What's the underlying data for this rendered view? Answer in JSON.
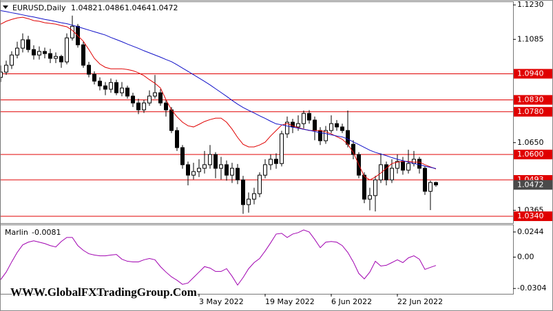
{
  "chart_data": [
    {
      "type": "candlestick",
      "title": "EURUSD,Daily",
      "categories": [
        null,
        null,
        null,
        null,
        null,
        null,
        null,
        null,
        null,
        null,
        null,
        null,
        null,
        null,
        null,
        null,
        null,
        null,
        null,
        null,
        null,
        null,
        null,
        null,
        null,
        null,
        null,
        null,
        null,
        null,
        null,
        null,
        null,
        null,
        null,
        null,
        "3 May 2022",
        null,
        null,
        null,
        null,
        null,
        null,
        null,
        null,
        null,
        null,
        null,
        "19 May 2022",
        null,
        null,
        null,
        null,
        null,
        null,
        null,
        null,
        null,
        null,
        null,
        "6 Jun 2022",
        null,
        null,
        null,
        null,
        null,
        null,
        null,
        null,
        null,
        null,
        null,
        "22 Jun 2022",
        null,
        null,
        null,
        null,
        null,
        null,
        null
      ],
      "open": [
        1.0925,
        1.0947,
        1.0976,
        1.1019,
        1.1048,
        1.1083,
        1.1042,
        1.1019,
        1.1034,
        1.1025,
        1.1005,
        1.1013,
        1.099,
        1.1091,
        1.114,
        1.1062,
        1.0976,
        1.0938,
        1.0909,
        1.0889,
        1.0875,
        1.0903,
        1.086,
        1.088,
        1.0846,
        1.0817,
        1.0788,
        1.0817,
        1.0846,
        1.086,
        1.0817,
        1.0788,
        1.0701,
        1.0629,
        1.0557,
        1.0513,
        1.0528,
        1.0542,
        1.0557,
        1.06,
        1.0542,
        1.0557,
        1.0513,
        1.0542,
        1.0493,
        1.0389,
        1.0412,
        1.0435,
        1.0513,
        1.0557,
        1.058,
        1.0562,
        1.0687,
        1.0736,
        1.0716,
        1.073,
        1.0773,
        1.0745,
        1.0701,
        1.0658,
        1.0701,
        1.073,
        1.0716,
        1.0701,
        1.0643,
        1.06,
        1.0513,
        1.0412,
        1.0427,
        1.0493,
        1.0557,
        1.0493,
        1.0542,
        1.0571,
        1.0534,
        1.0562,
        1.058,
        1.0542,
        1.0445,
        1.0482
      ],
      "high": [
        1.0975,
        1.0995,
        1.1035,
        1.1075,
        1.111,
        1.11,
        1.106,
        1.1055,
        1.105,
        1.1045,
        1.103,
        1.102,
        1.111,
        1.1185,
        1.115,
        1.1075,
        1.099,
        1.095,
        1.0925,
        1.0905,
        1.092,
        1.0915,
        1.0905,
        1.089,
        1.086,
        1.0835,
        1.083,
        1.087,
        1.0935,
        1.0875,
        1.083,
        1.08,
        1.0715,
        1.064,
        1.057,
        1.0565,
        1.058,
        1.0615,
        1.064,
        1.061,
        1.059,
        1.0575,
        1.0565,
        1.056,
        1.051,
        1.044,
        1.046,
        1.0525,
        1.058,
        1.06,
        1.0605,
        1.07,
        1.076,
        1.075,
        1.0765,
        1.0785,
        1.0787,
        1.076,
        1.0715,
        1.072,
        1.0765,
        1.0745,
        1.073,
        1.0785,
        1.066,
        1.061,
        1.0525,
        1.046,
        1.051,
        1.0605,
        1.057,
        1.058,
        1.06,
        1.059,
        1.062,
        1.0615,
        1.059,
        1.055,
        1.049,
        1.0486
      ],
      "low": [
        1.0905,
        1.0935,
        1.096,
        1.1005,
        1.103,
        1.103,
        1.1,
        1.1,
        1.1005,
        1.0985,
        1.0985,
        1.0965,
        1.098,
        1.108,
        1.105,
        1.0965,
        1.0925,
        1.0895,
        1.087,
        1.085,
        1.086,
        1.085,
        1.0845,
        1.0835,
        1.08,
        1.077,
        1.0775,
        1.0805,
        1.0835,
        1.0805,
        1.076,
        1.069,
        1.0615,
        1.054,
        1.047,
        1.0495,
        1.0505,
        1.052,
        1.054,
        1.05,
        1.0495,
        1.049,
        1.048,
        1.0475,
        1.035,
        1.0355,
        1.039,
        1.042,
        1.05,
        1.0535,
        1.054,
        1.055,
        1.067,
        1.069,
        1.07,
        1.071,
        1.073,
        1.066,
        1.064,
        1.0645,
        1.069,
        1.07,
        1.069,
        1.063,
        1.058,
        1.05,
        1.0395,
        1.0365,
        1.036,
        1.048,
        1.047,
        1.048,
        1.052,
        1.0515,
        1.052,
        1.055,
        1.052,
        1.043,
        1.0366,
        1.0464
      ],
      "close": [
        1.0947,
        1.0976,
        1.1019,
        1.1048,
        1.1083,
        1.1042,
        1.1019,
        1.1034,
        1.1025,
        1.1005,
        1.1013,
        1.099,
        1.1091,
        1.114,
        1.1062,
        1.0976,
        1.0938,
        1.0909,
        1.0889,
        1.0875,
        1.0903,
        1.086,
        1.088,
        1.0846,
        1.0817,
        1.0788,
        1.0817,
        1.0846,
        1.086,
        1.0817,
        1.0788,
        1.0701,
        1.0629,
        1.0557,
        1.0513,
        1.0528,
        1.0542,
        1.0557,
        1.06,
        1.0542,
        1.0557,
        1.0513,
        1.0542,
        1.0493,
        1.0389,
        1.0412,
        1.0435,
        1.0513,
        1.0557,
        1.058,
        1.0562,
        1.0687,
        1.0736,
        1.0716,
        1.073,
        1.0773,
        1.0745,
        1.0701,
        1.0658,
        1.0701,
        1.073,
        1.0716,
        1.0701,
        1.0643,
        1.06,
        1.0513,
        1.0412,
        1.0427,
        1.0493,
        1.0557,
        1.0493,
        1.0542,
        1.0571,
        1.0534,
        1.0562,
        1.058,
        1.0542,
        1.0445,
        1.0482,
        1.0472
      ],
      "up_color": "#ffffff",
      "down_color": "#000000",
      "lines": [
        {
          "color": "#e00000",
          "values": [
            1.1149,
            1.1161,
            1.1169,
            1.1175,
            1.1178,
            1.1172,
            1.1164,
            1.1161,
            1.1155,
            1.1152,
            1.1149,
            1.1143,
            1.1138,
            1.1123,
            1.11,
            1.1077,
            1.1042,
            1.1005,
            1.0981,
            1.0967,
            1.0961,
            1.0961,
            1.0961,
            1.0958,
            1.0953,
            1.0944,
            1.0932,
            1.0915,
            1.09,
            1.088,
            1.0831,
            1.0788,
            1.0759,
            1.0736,
            1.0721,
            1.0716,
            1.0727,
            1.0739,
            1.0747,
            1.0753,
            1.0753,
            1.0736,
            1.0707,
            1.0672,
            1.0643,
            1.0632,
            1.0632,
            1.064,
            1.0652,
            1.0678,
            1.0701,
            1.0724,
            1.073,
            1.0721,
            1.0713,
            1.0707,
            1.0701,
            1.0701,
            1.0701,
            1.0695,
            1.0687,
            1.0675,
            1.0664,
            1.0643,
            1.0609,
            1.0557,
            1.0508,
            1.0493,
            1.0505,
            1.0522,
            1.0542,
            1.0562,
            1.0568,
            1.0571,
            1.0571,
            1.0568,
            1.0568,
            1.0557,
            1.0548,
            1.0539
          ]
        },
        {
          "color": "#1010c8",
          "values": [
            1.1206,
            1.1202,
            1.1197,
            1.1193,
            1.1188,
            1.1183,
            1.1179,
            1.1174,
            1.1169,
            1.1165,
            1.116,
            1.1155,
            1.1151,
            1.1145,
            1.1138,
            1.1131,
            1.1124,
            1.1117,
            1.111,
            1.1103,
            1.1093,
            1.1084,
            1.1075,
            1.1065,
            1.1056,
            1.1047,
            1.1037,
            1.1028,
            1.1019,
            1.101,
            1.1,
            1.0991,
            1.0978,
            1.0964,
            1.095,
            1.0936,
            1.0922,
            1.0908,
            1.0893,
            1.0877,
            1.0861,
            1.0845,
            1.0828,
            1.0812,
            1.0798,
            1.0786,
            1.0775,
            1.0763,
            1.0752,
            1.074,
            1.0729,
            1.0725,
            1.072,
            1.0715,
            1.0711,
            1.0706,
            1.0702,
            1.0697,
            1.0692,
            1.0688,
            1.0683,
            1.0678,
            1.0674,
            1.0665,
            1.0653,
            1.0642,
            1.063,
            1.0618,
            1.0609,
            1.0602,
            1.0595,
            1.0587,
            1.058,
            1.0574,
            1.0568,
            1.0562,
            1.0557,
            1.0551,
            1.0546,
            1.0541
          ]
        }
      ],
      "ylim": [
        1.0311,
        1.1242
      ],
      "yticks": [
        {
          "value": 1.123,
          "label": "1.1230"
        },
        1.1085,
        {
          "value": 1.065,
          "label": "1.0650"
        },
        1.0365
      ],
      "levels": [
        {
          "value": 1.094,
          "label": "1.0940"
        },
        {
          "value": 1.083,
          "label": "1.0830"
        },
        {
          "value": 1.078,
          "label": "1.0780"
        },
        {
          "value": 1.06,
          "label": "1.0600"
        },
        1.0493,
        {
          "value": 1.034,
          "label": "1.0340"
        }
      ],
      "level_color": "#e00000",
      "price_box_color": "#4a4a4a"
    },
    {
      "type": "line",
      "title": "Marlin",
      "color": "#a000b0",
      "values": [
        -0.0218,
        -0.0145,
        -0.0046,
        0.0046,
        0.0119,
        0.0145,
        0.0158,
        0.0145,
        0.0132,
        0.0112,
        0.0099,
        0.0152,
        0.0191,
        0.0191,
        0.0112,
        0.0066,
        0.0033,
        0.002,
        0.0013,
        0.0013,
        0.002,
        0.0026,
        -0.002,
        -0.004,
        -0.0046,
        -0.0046,
        -0.0026,
        -0.0013,
        -0.0026,
        -0.0092,
        -0.0145,
        -0.0191,
        -0.0224,
        -0.0264,
        -0.0251,
        -0.0198,
        -0.0145,
        -0.0092,
        -0.0106,
        -0.0139,
        -0.0139,
        -0.0112,
        -0.0185,
        -0.0271,
        -0.0198,
        -0.0112,
        -0.0053,
        -0.0013,
        0.0059,
        0.0139,
        0.0224,
        0.0231,
        0.0191,
        0.0224,
        0.0238,
        0.0264,
        0.0244,
        0.0172,
        0.0092,
        0.0145,
        0.0152,
        0.0145,
        0.0112,
        0.0046,
        -0.0046,
        -0.0158,
        -0.0211,
        -0.0145,
        -0.004,
        -0.0086,
        -0.0079,
        -0.0053,
        -0.0026,
        -0.0053,
        -0.0007,
        0.0013,
        -0.002,
        -0.0119,
        -0.0099,
        -0.0081
      ],
      "ylim": [
        -0.0356,
        0.031
      ],
      "yticks": [
        0.0244,
        {
          "value": 0,
          "label": "0.00"
        },
        -0.0304
      ]
    }
  ],
  "watermark": "WWW.GlobalFXTradingGroup.Com"
}
